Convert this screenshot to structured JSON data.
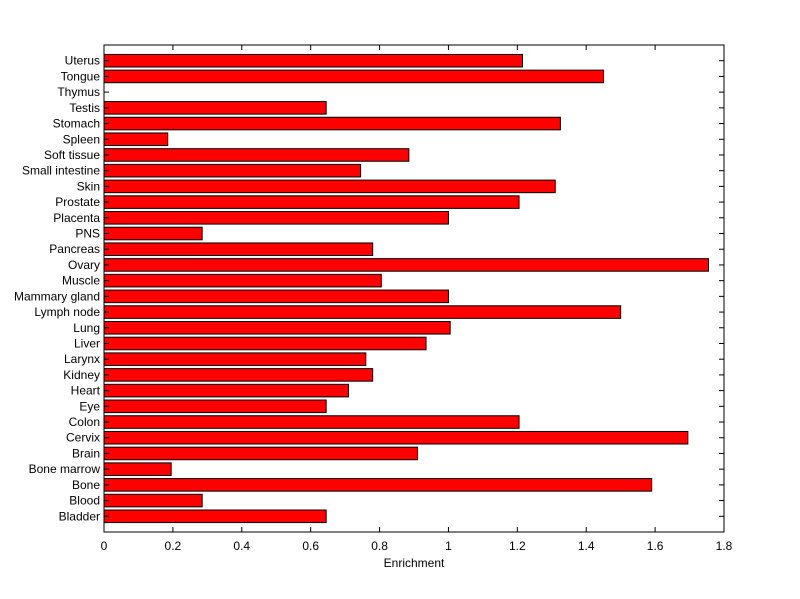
{
  "chart_data": {
    "type": "bar",
    "orientation": "horizontal",
    "title": "",
    "xlabel": "Enrichment",
    "ylabel": "",
    "xlim": [
      0,
      1.8
    ],
    "x_ticks": [
      "0",
      "0.2",
      "0.4",
      "0.6",
      "0.8",
      "1",
      "1.2",
      "1.4",
      "1.6",
      "1.8"
    ],
    "x_tick_values": [
      0,
      0.2,
      0.4,
      0.6,
      0.8,
      1.0,
      1.2,
      1.4,
      1.6,
      1.8
    ],
    "grid": false,
    "bar_color": "#ff0000",
    "categories": [
      "Bladder",
      "Blood",
      "Bone",
      "Bone marrow",
      "Brain",
      "Cervix",
      "Colon",
      "Eye",
      "Heart",
      "Kidney",
      "Larynx",
      "Liver",
      "Lung",
      "Lymph node",
      "Mammary gland",
      "Muscle",
      "Ovary",
      "Pancreas",
      "PNS",
      "Placenta",
      "Prostate",
      "Skin",
      "Small intestine",
      "Soft tissue",
      "Spleen",
      "Stomach",
      "Testis",
      "Thymus",
      "Tongue",
      "Uterus"
    ],
    "values": [
      0.645,
      0.285,
      1.59,
      0.195,
      0.91,
      1.695,
      1.205,
      0.645,
      0.71,
      0.78,
      0.76,
      0.935,
      1.005,
      1.5,
      1.0,
      0.805,
      1.755,
      0.78,
      0.285,
      1.0,
      1.205,
      1.31,
      0.745,
      0.885,
      0.185,
      1.325,
      0.645,
      0,
      1.45,
      1.215
    ]
  }
}
